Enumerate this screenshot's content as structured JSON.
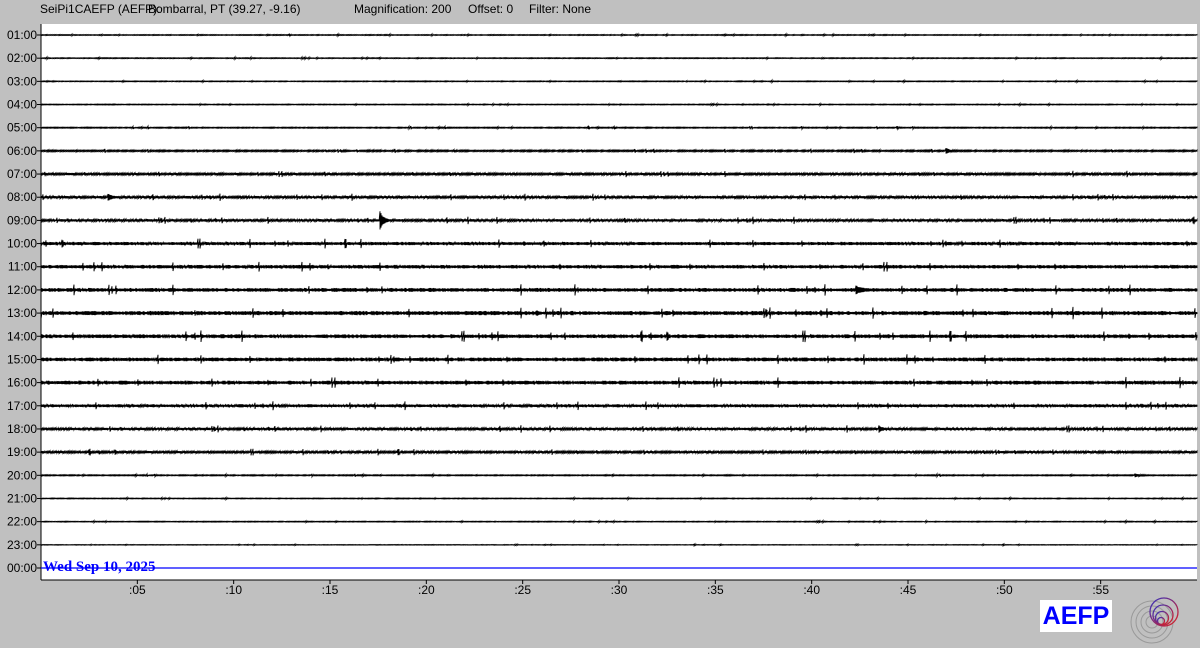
{
  "header": {
    "station": "SeiPi1CAEFP (AEFP):",
    "location": "Bombarral, PT (39.27, -9.16)",
    "magnification": "Magnification: 200",
    "offset": "Offset: 0",
    "filter": "Filter: None"
  },
  "logo": {
    "text": "AEFP",
    "color": "#0000ff"
  },
  "chart_data": {
    "type": "line",
    "title": "",
    "date_label": "Wed Sep 10, 2025",
    "row_labels": [
      "01:00",
      "02:00",
      "03:00",
      "04:00",
      "05:00",
      "06:00",
      "07:00",
      "08:00",
      "09:00",
      "10:00",
      "11:00",
      "12:00",
      "13:00",
      "14:00",
      "15:00",
      "16:00",
      "17:00",
      "18:00",
      "19:00",
      "20:00",
      "21:00",
      "22:00",
      "23:00",
      "00:00"
    ],
    "x_ticks": [
      ":05",
      ":10",
      ":15",
      ":20",
      ":25",
      ":30",
      ":35",
      ":40",
      ":45",
      ":50",
      ":55"
    ],
    "x_range_minutes": [
      0,
      60
    ],
    "relative_noise": [
      0.3,
      0.3,
      0.3,
      0.3,
      0.4,
      0.6,
      0.8,
      0.9,
      0.9,
      1.2,
      1.3,
      1.4,
      1.5,
      1.4,
      1.4,
      1.4,
      1.1,
      0.9,
      0.8,
      0.4,
      0.3,
      0.3,
      0.2,
      0
    ],
    "events": [
      {
        "row": "09:00",
        "minute": 17.6,
        "relative_amplitude": 8
      },
      {
        "row": "08:00",
        "minute": 3.5,
        "relative_amplitude": 2.5
      },
      {
        "row": "06:00",
        "minute": 47.0,
        "relative_amplitude": 2
      },
      {
        "row": "12:00",
        "minute": 42.3,
        "relative_amplitude": 3
      },
      {
        "row": "18:00",
        "minute": 43.5,
        "relative_amplitude": 2.5
      },
      {
        "row": "20:00",
        "minute": 56.8,
        "relative_amplitude": 1.5
      }
    ],
    "colors": {
      "trace": "#000000",
      "current_row": "#0000ff",
      "date_label": "#0000ff"
    }
  }
}
